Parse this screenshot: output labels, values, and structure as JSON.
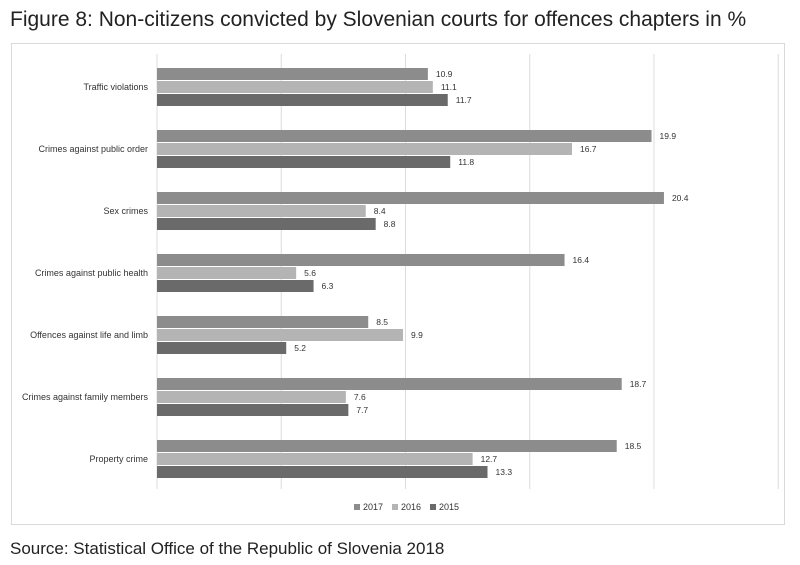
{
  "title": "Figure 8: Non-citizens convicted by Slovenian courts for offences chapters in %",
  "source": "Source: Statistical Office of the Republic of Slovenia 2018",
  "colors": {
    "2017": "#8c8c8c",
    "2016": "#b4b4b4",
    "2015": "#6a6a6a",
    "grid": "#dcdcdc"
  },
  "chart_data": {
    "type": "bar",
    "orientation": "horizontal",
    "title": "Figure 8: Non-citizens convicted by Slovenian courts for offences chapters in %",
    "xlabel": "",
    "ylabel": "",
    "xlim": [
      0,
      25
    ],
    "grid": true,
    "legend": "bottom",
    "categories": [
      "Traffic violations",
      "Crimes against public order",
      "Sex crimes",
      "Crimes against public health",
      "Offences against life and limb",
      "Crimes against family members",
      "Property crime"
    ],
    "series": [
      {
        "name": "2017",
        "values": [
          10.9,
          19.9,
          20.4,
          16.4,
          8.5,
          18.7,
          18.5
        ]
      },
      {
        "name": "2016",
        "values": [
          11.1,
          16.7,
          8.4,
          5.6,
          9.9,
          7.6,
          12.7
        ]
      },
      {
        "name": "2015",
        "values": [
          11.7,
          11.8,
          8.8,
          6.3,
          5.2,
          7.7,
          13.3
        ]
      }
    ]
  }
}
